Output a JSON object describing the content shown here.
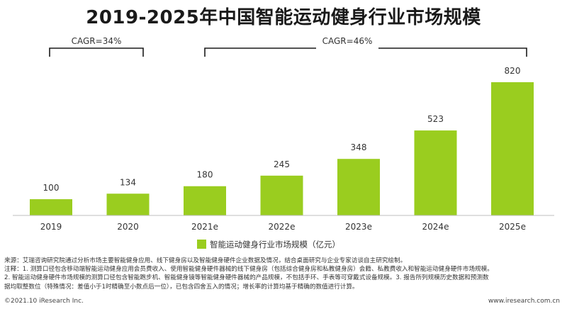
{
  "title": "2019-2025年中国智能运动健身行业市场规模",
  "cagr_labels": [
    "CAGR=34%",
    "CAGR=46%"
  ],
  "chart_data": {
    "type": "bar",
    "title": "2019-2025年中国智能运动健身行业市场规模",
    "categories": [
      "2019",
      "2020",
      "2021e",
      "2022e",
      "2023e",
      "2024e",
      "2025e"
    ],
    "series": [
      {
        "name": "智能运动健身行业市场规模（亿元）",
        "values": [
          100,
          134,
          180,
          245,
          348,
          523,
          820
        ]
      }
    ],
    "ylim": [
      0,
      820
    ],
    "grid": false,
    "legend_position": "bottom",
    "bar_color": "#9acd1f",
    "annotations": [
      "CAGR=34%",
      "CAGR=46%"
    ]
  },
  "notes": [
    "来源：艾瑞咨询研究院通过分析市场主要智能健身应用、线下健身房以及智能健身硬件企业数据及情况，结合桌面研究与企业专家访谈自主研究绘制。",
    "注释：1. 测算口径包含移动端智能运动健身应用会员费收入、使用智能健身硬件器械的线下健身房（包括综合健身房和私教健身房）会籍、私教费收入和智能运动健身硬件市场规模。",
    "2. 智能运动健身硬件市场规模的测算口径包含智能跑步机、智能健身镜等智能健身硬件器械的产品规模，不包括手环、手表等可穿戴式设备规模。3. 报告所列规模历史数据和预测数",
    "据均取整数位（特殊情况：差值小于1时精确至小数点后一位），已包含四舍五入的情况；增长率的计算均基于精确的数值进行计算。"
  ],
  "footer": {
    "left": "©2021.10 iResearch Inc.",
    "right": "www.iresearch.com.cn"
  }
}
